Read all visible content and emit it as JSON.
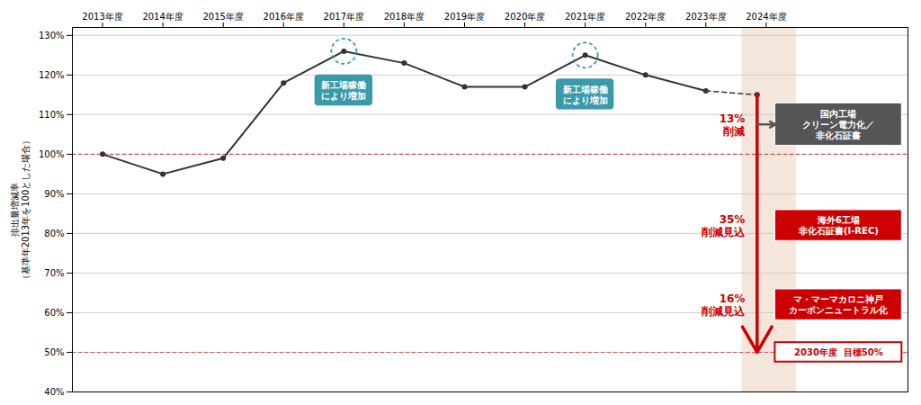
{
  "chart_data": {
    "type": "line",
    "categories": [
      "2013年度",
      "2014年度",
      "2015年度",
      "2016年度",
      "2017年度",
      "2018年度",
      "2019年度",
      "2020年度",
      "2021年度",
      "2022年度",
      "2023年度",
      "2024年度"
    ],
    "values": [
      100,
      95,
      99,
      118,
      126,
      123,
      117,
      117,
      125,
      120,
      116,
      null
    ],
    "color": "#333333",
    "marker": "circle",
    "line_style": "solid",
    "y_label": "排出量増減率\n（基準年2013年を100とした場合）",
    "ylim": [
      40,
      132
    ],
    "yticks": [
      {
        "value": 40,
        "label": "40%"
      },
      {
        "value": 50,
        "label": "50%"
      },
      {
        "value": 60,
        "label": "60%"
      },
      {
        "value": 70,
        "label": "70%"
      },
      {
        "value": 80,
        "label": "80%"
      },
      {
        "value": 90,
        "label": "90%"
      },
      {
        "value": 100,
        "label": "100%"
      },
      {
        "value": 110,
        "label": "110%"
      },
      {
        "value": 120,
        "label": "120%"
      },
      {
        "value": 130,
        "label": "130%"
      }
    ],
    "grid": true,
    "shaded_category": "2024年度",
    "shaded_color": "#f5e6dc",
    "reference_lines": [
      {
        "value": 100,
        "color": "#e05050"
      },
      {
        "value": 50,
        "color": "#e05050"
      }
    ],
    "projection": {
      "value": 115,
      "color": "#333333",
      "line_style": "dashed"
    },
    "annotations": [
      {
        "text": "新工場稼働\nにより増加",
        "category": "2017年度",
        "color": "#3a9aaa"
      },
      {
        "text": "新工場稼働\nにより増加",
        "category": "2021年度",
        "color": "#3a9aaa"
      }
    ],
    "reduction_color": "#cc0000",
    "steps": [
      {
        "text": "国内工場\nクリーン電力化／\n非化石証書",
        "color": "#555555",
        "reduction": "13%\n削減"
      },
      {
        "text": "海外6工場\n非化石証書(I-REC)",
        "color": "#cc0000",
        "reduction": "35%\n削減見込"
      },
      {
        "text": "マ・マーマカロニ神戸\nカーボンニュートラル化",
        "color": "#cc0000",
        "reduction": "16%\n削減見込"
      }
    ],
    "target": {
      "value": 50,
      "label": "2030年度  目標50%",
      "color": "#cc0000"
    },
    "arrow_color": "#cc0000"
  }
}
